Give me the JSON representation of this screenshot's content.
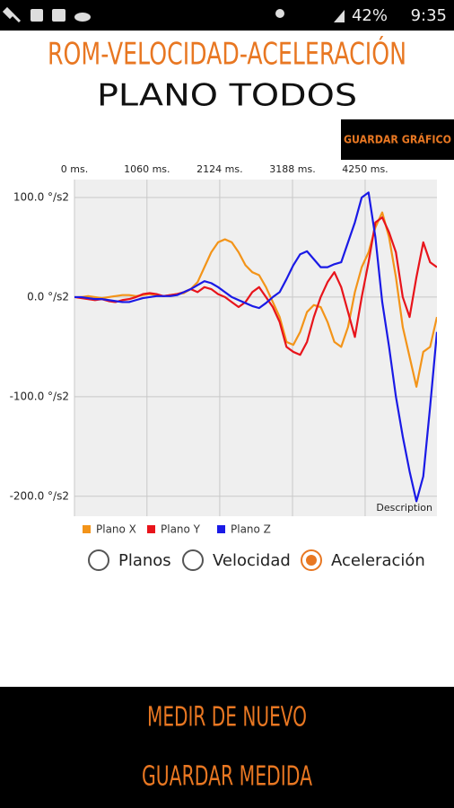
{
  "status_bar": {
    "battery": "42%",
    "time": "9:35"
  },
  "header": {
    "title": "ROM-VELOCIDAD-ACELERACIÓN",
    "subtitle": "PLANO TODOS"
  },
  "save_chart_button": "GUARDAR GRÁFICO",
  "chart_data": {
    "type": "line",
    "description": "Description",
    "x": [
      0,
      100,
      200,
      300,
      400,
      500,
      600,
      700,
      800,
      900,
      1000,
      1100,
      1200,
      1300,
      1400,
      1500,
      1600,
      1700,
      1800,
      1900,
      2000,
      2100,
      2200,
      2300,
      2400,
      2500,
      2600,
      2700,
      2800,
      2900,
      3000,
      3100,
      3200,
      3300,
      3400,
      3500,
      3600,
      3700,
      3800,
      3900,
      4000,
      4100,
      4200,
      4300,
      4400,
      4500,
      4600,
      4700,
      4800,
      4900,
      5000,
      5100,
      5200,
      5300
    ],
    "series": [
      {
        "name": "Plano X",
        "color": "#f39419",
        "values": [
          0,
          0,
          1,
          0,
          -1,
          0,
          1,
          2,
          2,
          1,
          2,
          3,
          2,
          1,
          2,
          3,
          4,
          8,
          15,
          30,
          45,
          55,
          58,
          55,
          45,
          32,
          25,
          22,
          10,
          -5,
          -20,
          -45,
          -48,
          -35,
          -15,
          -8,
          -10,
          -25,
          -45,
          -50,
          -30,
          5,
          30,
          45,
          70,
          85,
          60,
          20,
          -30,
          -60,
          -90,
          -55,
          -50,
          -20
        ]
      },
      {
        "name": "Plano Y",
        "color": "#e8141b",
        "values": [
          0,
          -1,
          -2,
          -3,
          -2,
          -4,
          -5,
          -3,
          -2,
          0,
          3,
          4,
          3,
          1,
          2,
          3,
          5,
          8,
          5,
          10,
          8,
          3,
          0,
          -5,
          -10,
          -5,
          5,
          10,
          0,
          -10,
          -25,
          -50,
          -55,
          -58,
          -45,
          -20,
          0,
          15,
          25,
          10,
          -15,
          -40,
          0,
          35,
          75,
          80,
          65,
          45,
          0,
          -20,
          20,
          55,
          35,
          30
        ]
      },
      {
        "name": "Plano Z",
        "color": "#1a1ae6",
        "values": [
          0,
          0,
          -1,
          -2,
          -2,
          -3,
          -4,
          -5,
          -5,
          -3,
          -1,
          0,
          1,
          1,
          1,
          2,
          5,
          8,
          12,
          16,
          14,
          10,
          5,
          0,
          -3,
          -6,
          -9,
          -11,
          -6,
          0,
          5,
          18,
          32,
          43,
          46,
          38,
          30,
          30,
          33,
          35,
          55,
          75,
          100,
          105,
          60,
          -5,
          -50,
          -100,
          -140,
          -175,
          -205,
          -180,
          -110,
          -35
        ]
      }
    ],
    "xlim": [
      0,
      5300
    ],
    "xticks": [
      {
        "value": 0,
        "label": "0 ms."
      },
      {
        "value": 1060,
        "label": "1060 ms."
      },
      {
        "value": 2124,
        "label": "2124 ms."
      },
      {
        "value": 3188,
        "label": "3188 ms."
      },
      {
        "value": 4250,
        "label": "4250 ms."
      }
    ],
    "ylim": [
      -220,
      118
    ],
    "yticks": [
      {
        "value": 100,
        "label": "100.0 °/s2"
      },
      {
        "value": 0,
        "label": "0.0 °/s2"
      },
      {
        "value": -100,
        "label": "-100.0 °/s2"
      },
      {
        "value": -200,
        "label": "-200.0 °/s2"
      }
    ],
    "grid": true
  },
  "view_options": [
    {
      "label": "Planos",
      "checked": false
    },
    {
      "label": "Velocidad",
      "checked": false
    },
    {
      "label": "Aceleración",
      "checked": true
    }
  ],
  "footer": {
    "buttons": [
      "MEDIR DE NUEVO",
      "GUARDAR MEDIDA"
    ]
  }
}
